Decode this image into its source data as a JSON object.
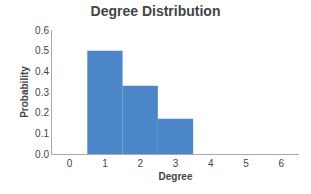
{
  "chart_data": {
    "type": "bar",
    "title": "Degree Distribution",
    "xlabel": "Degree",
    "ylabel": "Probability",
    "x": [
      1,
      2,
      3
    ],
    "values": [
      0.5,
      0.33,
      0.17
    ],
    "color": "#4a86c8",
    "xlim": [
      -0.5,
      6.5
    ],
    "xticks": [
      0,
      1,
      2,
      3,
      4,
      5,
      6
    ],
    "ylim": [
      0,
      0.6
    ],
    "yticks": [
      {
        "value": 0,
        "label": "0.0"
      },
      0.1,
      0.2,
      0.3,
      0.4,
      0.5,
      0.6
    ],
    "grid": false
  }
}
